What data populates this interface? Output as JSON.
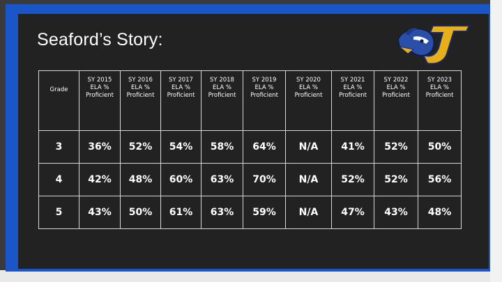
{
  "title": "Seaford’s Story:",
  "colors": {
    "frame": "#1a56c8",
    "slide": "#222222",
    "text": "#ffffff",
    "logo_gold": "#e8b018",
    "logo_blue": "#2a4fa8"
  },
  "logo": {
    "icon": "blue-jay-logo"
  },
  "table": {
    "grade_header": "Grade",
    "columns": [
      {
        "line1": "SY 2015",
        "line2": "ELA %",
        "line3": "Proficient"
      },
      {
        "line1": "SY 2016",
        "line2": "ELA %",
        "line3": "Proficient"
      },
      {
        "line1": "SY 2017",
        "line2": "ELA %",
        "line3": "Proficient"
      },
      {
        "line1": "SY 2018",
        "line2": "ELA %",
        "line3": "Proficient"
      },
      {
        "line1": "SY 2019",
        "line2": "ELA %",
        "line3": "Proficient"
      },
      {
        "line1": "SY 2020",
        "line2": "ELA %",
        "line3": "Proficient"
      },
      {
        "line1": "SY 2021",
        "line2": "ELA %",
        "line3": "Proficient"
      },
      {
        "line1": "SY 2022",
        "line2": "ELA %",
        "line3": "Proficient"
      },
      {
        "line1": "SY 2023",
        "line2": "ELA %",
        "line3": "Proficient"
      }
    ],
    "rows": [
      {
        "grade": "3",
        "values": [
          "36%",
          "52%",
          "54%",
          "58%",
          "64%",
          "N/A",
          "41%",
          "52%",
          "50%"
        ]
      },
      {
        "grade": "4",
        "values": [
          "42%",
          "48%",
          "60%",
          "63%",
          "70%",
          "N/A",
          "52%",
          "52%",
          "56%"
        ]
      },
      {
        "grade": "5",
        "values": [
          "43%",
          "50%",
          "61%",
          "63%",
          "59%",
          "N/A",
          "47%",
          "43%",
          "48%"
        ]
      }
    ]
  }
}
